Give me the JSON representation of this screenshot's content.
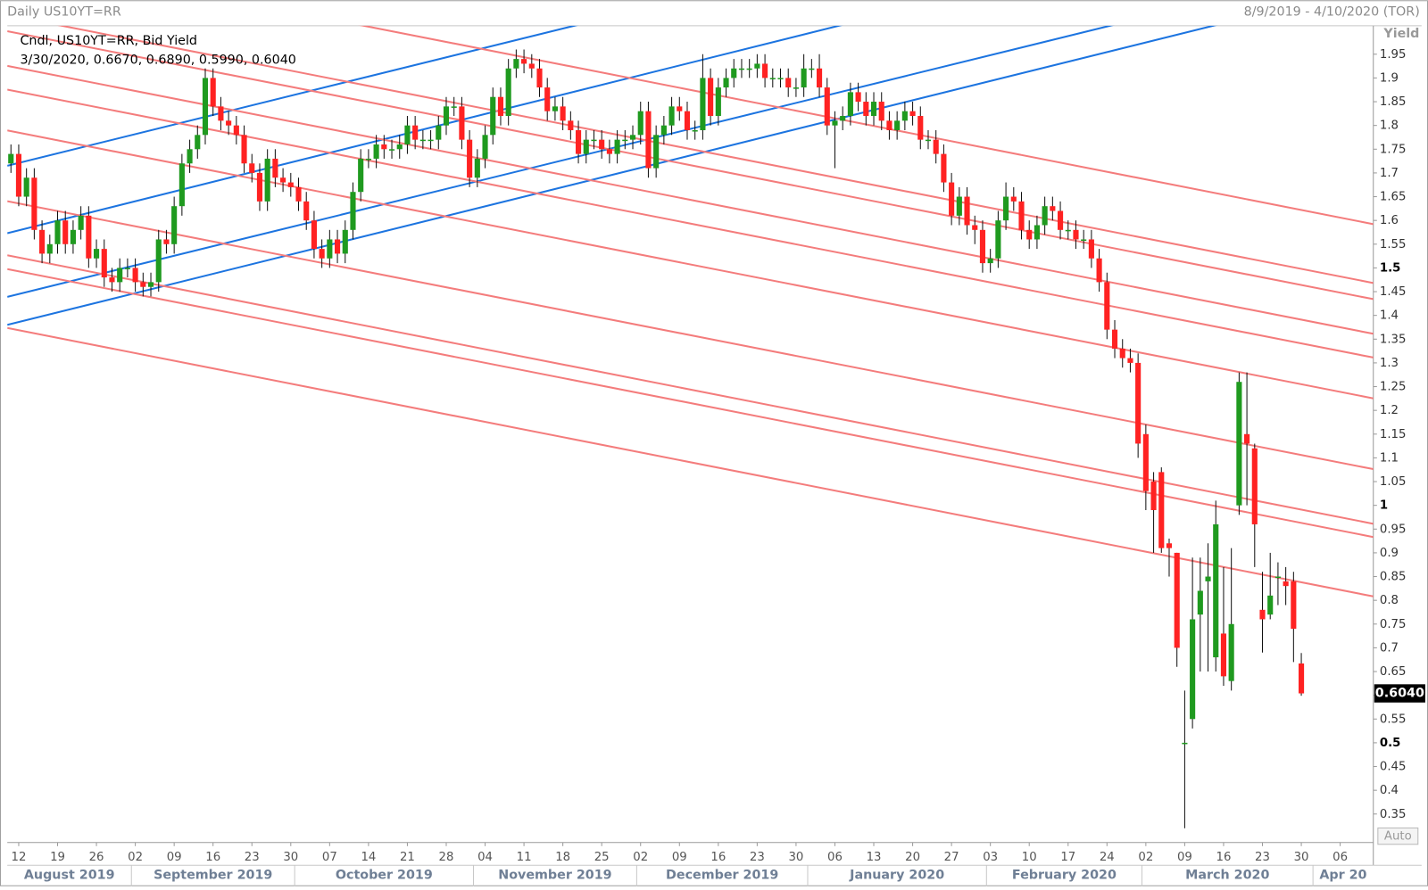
{
  "header": {
    "title": "Daily US10YT=RR",
    "range": "8/9/2019 - 4/10/2020 (TOR)"
  },
  "chart_data": {
    "type": "candlestick",
    "legend_lines": [
      "Cndl, US10YT=RR, Bid Yield",
      "3/30/2020, 0.6670, 0.6890, 0.5990, 0.6040"
    ],
    "y_axis_label": "Yield",
    "auto_button": "Auto",
    "last_value_label": "0.6040",
    "up_color": "#1f9a1f",
    "down_color": "#ff2222",
    "wick_color": "#111111",
    "ylim": [
      0.29,
      2.01
    ],
    "yticks": [
      0.35,
      0.4,
      0.45,
      0.5,
      0.55,
      0.6,
      0.65,
      0.7,
      0.75,
      0.8,
      0.85,
      0.9,
      0.95,
      1,
      1.05,
      1.1,
      1.15,
      1.2,
      1.25,
      1.3,
      1.35,
      1.4,
      1.45,
      1.5,
      1.55,
      1.6,
      1.65,
      1.7,
      1.75,
      1.8,
      1.85,
      1.9,
      1.95
    ],
    "xticks": [
      {
        "value": "2019-08-12",
        "label": "12"
      },
      {
        "value": "2019-08-19",
        "label": "19"
      },
      {
        "value": "2019-08-26",
        "label": "26"
      },
      {
        "value": "2019-09-02",
        "label": "02"
      },
      {
        "value": "2019-09-09",
        "label": "09"
      },
      {
        "value": "2019-09-16",
        "label": "16"
      },
      {
        "value": "2019-09-23",
        "label": "23"
      },
      {
        "value": "2019-09-30",
        "label": "30"
      },
      {
        "value": "2019-10-07",
        "label": "07"
      },
      {
        "value": "2019-10-14",
        "label": "14"
      },
      {
        "value": "2019-10-21",
        "label": "21"
      },
      {
        "value": "2019-10-28",
        "label": "28"
      },
      {
        "value": "2019-11-04",
        "label": "04"
      },
      {
        "value": "2019-11-11",
        "label": "11"
      },
      {
        "value": "2019-11-18",
        "label": "18"
      },
      {
        "value": "2019-11-25",
        "label": "25"
      },
      {
        "value": "2019-12-02",
        "label": "02"
      },
      {
        "value": "2019-12-09",
        "label": "09"
      },
      {
        "value": "2019-12-16",
        "label": "16"
      },
      {
        "value": "2019-12-23",
        "label": "23"
      },
      {
        "value": "2019-12-30",
        "label": "30"
      },
      {
        "value": "2020-01-06",
        "label": "06"
      },
      {
        "value": "2020-01-13",
        "label": "13"
      },
      {
        "value": "2020-01-20",
        "label": "20"
      },
      {
        "value": "2020-01-27",
        "label": "27"
      },
      {
        "value": "2020-02-03",
        "label": "03"
      },
      {
        "value": "2020-02-10",
        "label": "10"
      },
      {
        "value": "2020-02-17",
        "label": "17"
      },
      {
        "value": "2020-02-24",
        "label": "24"
      },
      {
        "value": "2020-03-02",
        "label": "02"
      },
      {
        "value": "2020-03-09",
        "label": "09"
      },
      {
        "value": "2020-03-16",
        "label": "16"
      },
      {
        "value": "2020-03-23",
        "label": "23"
      },
      {
        "value": "2020-03-30",
        "label": "30"
      },
      {
        "value": "2020-04-06",
        "label": "06"
      }
    ],
    "months": [
      {
        "value": "2019-08-01",
        "label": "August 2019"
      },
      {
        "value": "2019-09-01",
        "label": "September 2019"
      },
      {
        "value": "2019-10-01",
        "label": "October 2019"
      },
      {
        "value": "2019-11-01",
        "label": "November 2019"
      },
      {
        "value": "2019-12-01",
        "label": "December 2019"
      },
      {
        "value": "2020-01-01",
        "label": "January 2020"
      },
      {
        "value": "2020-02-01",
        "label": "February 2020"
      },
      {
        "value": "2020-03-01",
        "label": "March 2020"
      },
      {
        "value": "2020-04-01",
        "label": "Apr 20"
      }
    ],
    "trendlines": [
      {
        "color": "#1c74e0",
        "x": [
          "2019-08-09",
          "2020-03-30"
        ],
        "y": [
          1.717,
          2.388
        ]
      },
      {
        "color": "#1c74e0",
        "x": [
          "2019-08-09",
          "2020-03-30"
        ],
        "y": [
          1.575,
          2.253
        ]
      },
      {
        "color": "#1c74e0",
        "x": [
          "2019-08-09",
          "2020-03-30"
        ],
        "y": [
          1.441,
          2.109
        ]
      },
      {
        "color": "#1c74e0",
        "x": [
          "2019-08-09",
          "2020-03-30"
        ],
        "y": [
          1.382,
          2.056
        ]
      },
      {
        "color": "#f47c7c",
        "x": [
          "2019-08-09",
          "2020-03-30"
        ],
        "y": [
          2.156,
          1.622
        ]
      },
      {
        "color": "#f47c7c",
        "x": [
          "2019-08-09",
          "2020-03-30"
        ],
        "y": [
          2.031,
          1.498
        ]
      },
      {
        "color": "#f47c7c",
        "x": [
          "2019-08-09",
          "2020-03-30"
        ],
        "y": [
          1.997,
          1.464
        ]
      },
      {
        "color": "#f47c7c",
        "x": [
          "2019-08-09",
          "2020-03-30"
        ],
        "y": [
          1.924,
          1.391
        ]
      },
      {
        "color": "#f47c7c",
        "x": [
          "2019-08-09",
          "2020-03-30"
        ],
        "y": [
          1.874,
          1.341
        ]
      },
      {
        "color": "#f47c7c",
        "x": [
          "2019-08-09",
          "2020-03-30"
        ],
        "y": [
          1.788,
          1.255
        ]
      },
      {
        "color": "#f47c7c",
        "x": [
          "2019-08-09",
          "2020-03-30"
        ],
        "y": [
          1.639,
          1.106
        ]
      },
      {
        "color": "#f47c7c",
        "x": [
          "2019-08-09",
          "2020-03-30"
        ],
        "y": [
          1.525,
          0.991
        ]
      },
      {
        "color": "#f47c7c",
        "x": [
          "2019-08-09",
          "2020-03-30"
        ],
        "y": [
          1.496,
          0.963
        ]
      },
      {
        "color": "#f47c7c",
        "x": [
          "2019-08-09",
          "2020-03-30"
        ],
        "y": [
          1.372,
          0.838
        ]
      }
    ],
    "x": [
      "2019-08-09",
      "2019-08-12",
      "2019-08-13",
      "2019-08-14",
      "2019-08-15",
      "2019-08-16",
      "2019-08-19",
      "2019-08-20",
      "2019-08-21",
      "2019-08-22",
      "2019-08-23",
      "2019-08-26",
      "2019-08-27",
      "2019-08-28",
      "2019-08-29",
      "2019-08-30",
      "2019-09-02",
      "2019-09-03",
      "2019-09-04",
      "2019-09-05",
      "2019-09-06",
      "2019-09-09",
      "2019-09-10",
      "2019-09-11",
      "2019-09-12",
      "2019-09-13",
      "2019-09-16",
      "2019-09-17",
      "2019-09-18",
      "2019-09-19",
      "2019-09-20",
      "2019-09-23",
      "2019-09-24",
      "2019-09-25",
      "2019-09-26",
      "2019-09-27",
      "2019-09-30",
      "2019-10-01",
      "2019-10-02",
      "2019-10-03",
      "2019-10-04",
      "2019-10-07",
      "2019-10-08",
      "2019-10-09",
      "2019-10-10",
      "2019-10-11",
      "2019-10-14",
      "2019-10-15",
      "2019-10-16",
      "2019-10-17",
      "2019-10-18",
      "2019-10-21",
      "2019-10-22",
      "2019-10-23",
      "2019-10-24",
      "2019-10-25",
      "2019-10-28",
      "2019-10-29",
      "2019-10-30",
      "2019-10-31",
      "2019-11-01",
      "2019-11-04",
      "2019-11-05",
      "2019-11-06",
      "2019-11-07",
      "2019-11-08",
      "2019-11-11",
      "2019-11-12",
      "2019-11-13",
      "2019-11-14",
      "2019-11-15",
      "2019-11-18",
      "2019-11-19",
      "2019-11-20",
      "2019-11-21",
      "2019-11-22",
      "2019-11-25",
      "2019-11-26",
      "2019-11-27",
      "2019-11-28",
      "2019-11-29",
      "2019-12-02",
      "2019-12-03",
      "2019-12-04",
      "2019-12-05",
      "2019-12-06",
      "2019-12-09",
      "2019-12-10",
      "2019-12-11",
      "2019-12-12",
      "2019-12-13",
      "2019-12-16",
      "2019-12-17",
      "2019-12-18",
      "2019-12-19",
      "2019-12-20",
      "2019-12-23",
      "2019-12-24",
      "2019-12-25",
      "2019-12-26",
      "2019-12-27",
      "2019-12-30",
      "2019-12-31",
      "2020-01-01",
      "2020-01-02",
      "2020-01-03",
      "2020-01-06",
      "2020-01-07",
      "2020-01-08",
      "2020-01-09",
      "2020-01-10",
      "2020-01-13",
      "2020-01-14",
      "2020-01-15",
      "2020-01-16",
      "2020-01-17",
      "2020-01-20",
      "2020-01-21",
      "2020-01-22",
      "2020-01-23",
      "2020-01-24",
      "2020-01-27",
      "2020-01-28",
      "2020-01-29",
      "2020-01-30",
      "2020-01-31",
      "2020-02-03",
      "2020-02-04",
      "2020-02-05",
      "2020-02-06",
      "2020-02-07",
      "2020-02-10",
      "2020-02-11",
      "2020-02-12",
      "2020-02-13",
      "2020-02-14",
      "2020-02-17",
      "2020-02-18",
      "2020-02-19",
      "2020-02-20",
      "2020-02-21",
      "2020-02-24",
      "2020-02-25",
      "2020-02-26",
      "2020-02-27",
      "2020-02-28",
      "2020-03-02",
      "2020-03-03",
      "2020-03-04",
      "2020-03-05",
      "2020-03-06",
      "2020-03-09",
      "2020-03-10",
      "2020-03-11",
      "2020-03-12",
      "2020-03-13",
      "2020-03-16",
      "2020-03-17",
      "2020-03-18",
      "2020-03-19",
      "2020-03-20",
      "2020-03-23",
      "2020-03-24",
      "2020-03-25",
      "2020-03-26",
      "2020-03-27",
      "2020-03-30"
    ],
    "open": [
      1.72,
      1.74,
      1.65,
      1.69,
      1.58,
      1.53,
      1.55,
      1.6,
      1.55,
      1.58,
      1.61,
      1.52,
      1.54,
      1.48,
      1.47,
      1.5,
      1.5,
      1.47,
      1.46,
      1.47,
      1.56,
      1.55,
      1.63,
      1.72,
      1.75,
      1.78,
      1.9,
      1.84,
      1.81,
      1.8,
      1.78,
      1.72,
      1.7,
      1.64,
      1.73,
      1.69,
      1.68,
      1.67,
      1.64,
      1.6,
      1.54,
      1.52,
      1.56,
      1.53,
      1.58,
      1.66,
      1.73,
      1.73,
      1.76,
      1.75,
      1.75,
      1.76,
      1.8,
      1.77,
      1.77,
      1.77,
      1.8,
      1.84,
      1.84,
      1.77,
      1.69,
      1.73,
      1.78,
      1.86,
      1.82,
      1.92,
      1.94,
      1.93,
      1.92,
      1.88,
      1.83,
      1.84,
      1.81,
      1.79,
      1.74,
      1.77,
      1.77,
      1.75,
      1.74,
      1.77,
      1.77,
      1.78,
      1.83,
      1.71,
      1.78,
      1.8,
      1.84,
      1.83,
      1.79,
      1.79,
      1.9,
      1.82,
      1.88,
      1.9,
      1.92,
      1.92,
      1.92,
      1.93,
      1.9,
      1.9,
      1.9,
      1.88,
      1.88,
      1.92,
      1.92,
      1.88,
      1.8,
      1.81,
      1.82,
      1.87,
      1.85,
      1.82,
      1.85,
      1.81,
      1.79,
      1.81,
      1.83,
      1.82,
      1.77,
      1.77,
      1.74,
      1.68,
      1.61,
      1.65,
      1.59,
      1.58,
      1.51,
      1.52,
      1.6,
      1.65,
      1.64,
      1.58,
      1.56,
      1.59,
      1.63,
      1.62,
      1.58,
      1.58,
      1.56,
      1.56,
      1.52,
      1.47,
      1.37,
      1.33,
      1.31,
      1.3,
      1.15,
      1.05,
      1.07,
      0.92,
      0.9,
      0.5,
      0.55,
      0.77,
      0.84,
      0.68,
      0.73,
      0.63,
      1.0,
      1.15,
      1.12,
      0.78,
      0.77,
      0.85,
      0.84,
      0.84,
      0.667
    ],
    "high": [
      1.76,
      1.76,
      1.71,
      1.71,
      1.6,
      1.57,
      1.62,
      1.62,
      1.6,
      1.63,
      1.63,
      1.56,
      1.56,
      1.5,
      1.52,
      1.52,
      1.52,
      1.49,
      1.49,
      1.58,
      1.58,
      1.65,
      1.74,
      1.77,
      1.8,
      1.92,
      1.92,
      1.86,
      1.83,
      1.82,
      1.8,
      1.74,
      1.72,
      1.75,
      1.75,
      1.71,
      1.7,
      1.69,
      1.66,
      1.62,
      1.56,
      1.58,
      1.58,
      1.6,
      1.68,
      1.75,
      1.75,
      1.78,
      1.78,
      1.77,
      1.78,
      1.82,
      1.82,
      1.79,
      1.79,
      1.82,
      1.86,
      1.86,
      1.86,
      1.79,
      1.75,
      1.8,
      1.88,
      1.88,
      1.94,
      1.96,
      1.96,
      1.95,
      1.94,
      1.9,
      1.86,
      1.86,
      1.83,
      1.81,
      1.79,
      1.79,
      1.79,
      1.77,
      1.79,
      1.79,
      1.8,
      1.85,
      1.85,
      1.8,
      1.82,
      1.86,
      1.86,
      1.85,
      1.81,
      1.95,
      1.92,
      1.9,
      1.92,
      1.94,
      1.94,
      1.94,
      1.95,
      1.95,
      1.92,
      1.92,
      1.92,
      1.9,
      1.95,
      1.94,
      1.95,
      1.9,
      1.83,
      1.84,
      1.89,
      1.89,
      1.87,
      1.87,
      1.87,
      1.83,
      1.83,
      1.85,
      1.85,
      1.84,
      1.79,
      1.79,
      1.76,
      1.7,
      1.67,
      1.67,
      1.61,
      1.6,
      1.54,
      1.62,
      1.68,
      1.67,
      1.66,
      1.6,
      1.61,
      1.65,
      1.65,
      1.64,
      1.6,
      1.6,
      1.58,
      1.58,
      1.54,
      1.49,
      1.39,
      1.35,
      1.33,
      1.32,
      1.17,
      1.07,
      1.08,
      0.93,
      0.9,
      0.61,
      0.89,
      0.89,
      0.92,
      1.01,
      0.87,
      0.91,
      1.28,
      1.28,
      1.13,
      0.86,
      0.9,
      0.88,
      0.87,
      0.86,
      0.689
    ],
    "low": [
      1.7,
      1.63,
      1.63,
      1.56,
      1.51,
      1.51,
      1.53,
      1.53,
      1.53,
      1.56,
      1.5,
      1.5,
      1.46,
      1.45,
      1.45,
      1.48,
      1.45,
      1.44,
      1.44,
      1.45,
      1.53,
      1.53,
      1.61,
      1.7,
      1.73,
      1.76,
      1.82,
      1.79,
      1.78,
      1.76,
      1.7,
      1.68,
      1.62,
      1.62,
      1.67,
      1.66,
      1.65,
      1.62,
      1.58,
      1.52,
      1.5,
      1.5,
      1.51,
      1.51,
      1.56,
      1.64,
      1.71,
      1.71,
      1.73,
      1.73,
      1.73,
      1.74,
      1.75,
      1.75,
      1.75,
      1.75,
      1.78,
      1.82,
      1.75,
      1.67,
      1.67,
      1.71,
      1.76,
      1.8,
      1.8,
      1.9,
      1.91,
      1.9,
      1.86,
      1.81,
      1.81,
      1.79,
      1.77,
      1.72,
      1.72,
      1.75,
      1.73,
      1.72,
      1.72,
      1.75,
      1.75,
      1.76,
      1.69,
      1.69,
      1.76,
      1.78,
      1.81,
      1.77,
      1.77,
      1.77,
      1.8,
      1.8,
      1.86,
      1.88,
      1.9,
      1.9,
      1.9,
      1.88,
      1.88,
      1.88,
      1.86,
      1.86,
      1.86,
      1.9,
      1.86,
      1.78,
      1.71,
      1.79,
      1.8,
      1.83,
      1.8,
      1.8,
      1.79,
      1.77,
      1.77,
      1.79,
      1.8,
      1.75,
      1.75,
      1.72,
      1.66,
      1.59,
      1.59,
      1.57,
      1.55,
      1.49,
      1.49,
      1.5,
      1.58,
      1.62,
      1.56,
      1.54,
      1.54,
      1.57,
      1.6,
      1.56,
      1.56,
      1.54,
      1.54,
      1.5,
      1.45,
      1.35,
      1.31,
      1.29,
      1.28,
      1.1,
      0.99,
      0.9,
      0.9,
      0.85,
      0.66,
      0.32,
      0.53,
      0.65,
      0.65,
      0.65,
      0.62,
      0.61,
      0.98,
      1.0,
      0.87,
      0.69,
      0.76,
      0.79,
      0.79,
      0.67,
      0.599
    ],
    "close": [
      1.74,
      1.65,
      1.69,
      1.58,
      1.53,
      1.55,
      1.6,
      1.55,
      1.58,
      1.61,
      1.52,
      1.54,
      1.48,
      1.47,
      1.5,
      1.5,
      1.47,
      1.46,
      1.47,
      1.56,
      1.55,
      1.63,
      1.72,
      1.75,
      1.78,
      1.9,
      1.84,
      1.81,
      1.8,
      1.78,
      1.72,
      1.7,
      1.64,
      1.73,
      1.69,
      1.68,
      1.67,
      1.64,
      1.6,
      1.54,
      1.52,
      1.56,
      1.53,
      1.58,
      1.66,
      1.73,
      1.73,
      1.76,
      1.75,
      1.75,
      1.76,
      1.8,
      1.77,
      1.77,
      1.77,
      1.8,
      1.84,
      1.84,
      1.77,
      1.69,
      1.73,
      1.78,
      1.86,
      1.82,
      1.92,
      1.94,
      1.93,
      1.92,
      1.88,
      1.83,
      1.84,
      1.81,
      1.79,
      1.74,
      1.77,
      1.77,
      1.75,
      1.74,
      1.77,
      1.77,
      1.78,
      1.83,
      1.71,
      1.78,
      1.8,
      1.84,
      1.83,
      1.79,
      1.79,
      1.9,
      1.82,
      1.88,
      1.9,
      1.92,
      1.92,
      1.92,
      1.93,
      1.9,
      1.9,
      1.9,
      1.88,
      1.88,
      1.92,
      1.92,
      1.88,
      1.8,
      1.81,
      1.82,
      1.87,
      1.85,
      1.82,
      1.85,
      1.81,
      1.79,
      1.81,
      1.83,
      1.82,
      1.77,
      1.77,
      1.74,
      1.68,
      1.61,
      1.65,
      1.59,
      1.58,
      1.51,
      1.52,
      1.6,
      1.65,
      1.64,
      1.58,
      1.56,
      1.59,
      1.63,
      1.62,
      1.58,
      1.58,
      1.56,
      1.56,
      1.52,
      1.47,
      1.37,
      1.33,
      1.31,
      1.3,
      1.13,
      1.03,
      0.99,
      0.91,
      0.91,
      0.7,
      0.5,
      0.76,
      0.82,
      0.85,
      0.96,
      0.64,
      0.75,
      1.26,
      1.13,
      0.96,
      0.76,
      0.81,
      0.85,
      0.83,
      0.74,
      0.604
    ]
  }
}
